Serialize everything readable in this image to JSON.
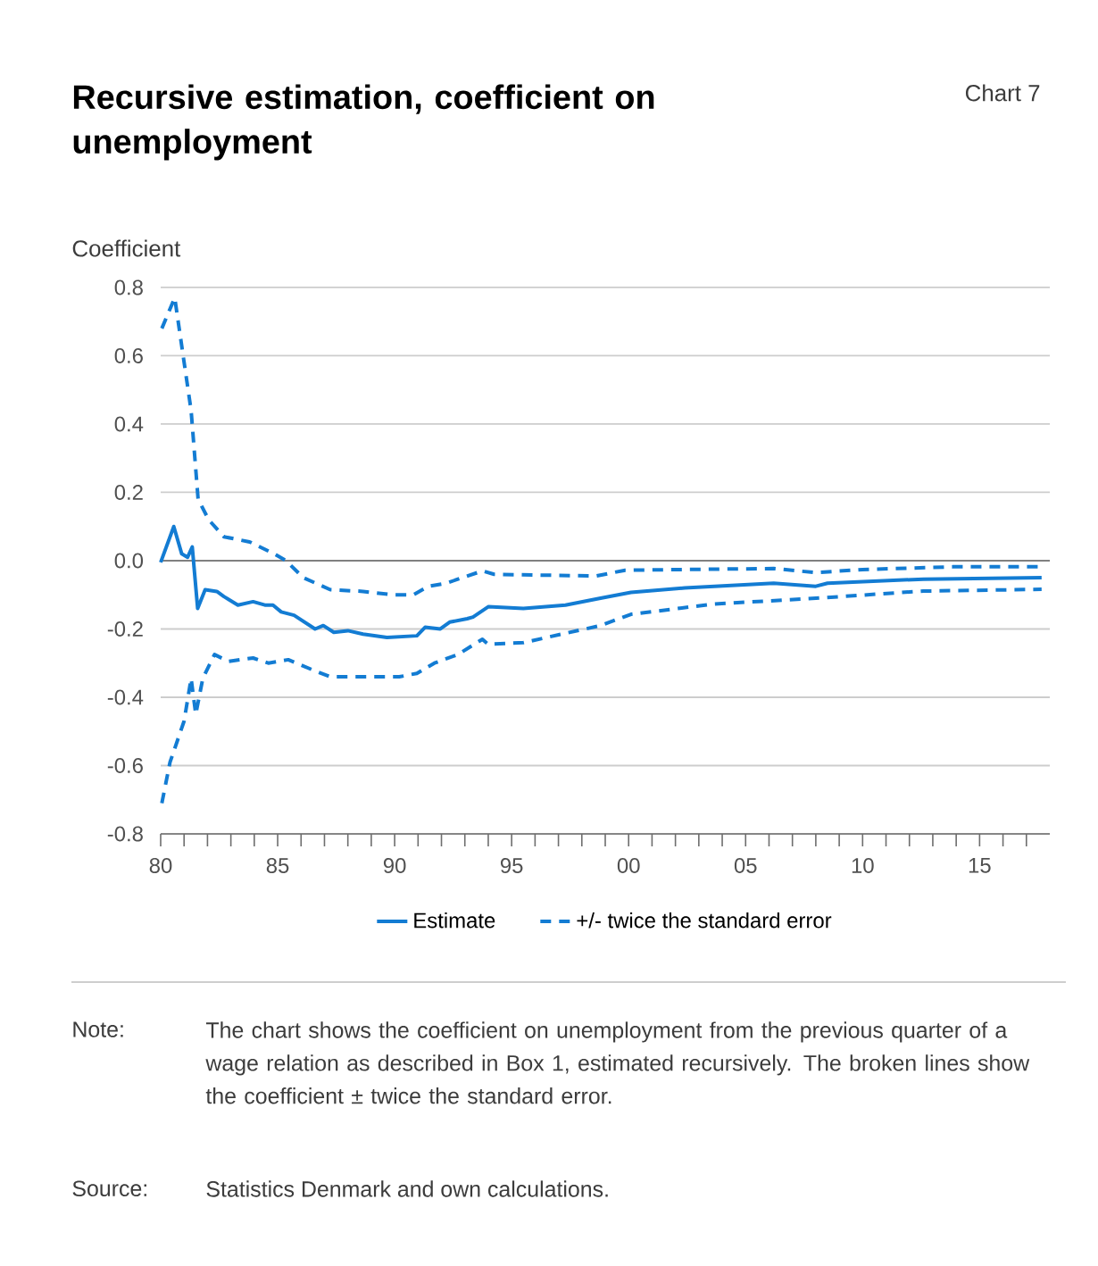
{
  "chart_data": {
    "type": "line",
    "title": "Recursive estimation, coefficient on unemployment",
    "ylabel": "Coefficient",
    "annotations": [
      "Chart 7",
      "Note:",
      "The chart shows the coefficient on unemployment from the previous quarter of a wage relation as described in Box 1, estimated recursively. The broken lines show the coefficient ± twice the standard error.",
      "Source:",
      "Statistics Denmark and own calculations."
    ],
    "xlim": [
      1980,
      2018
    ],
    "ylim": [
      -0.8,
      0.8
    ],
    "xticks": [
      {
        "value": 1980,
        "label": "80"
      },
      {
        "value": 1981,
        "label": null
      },
      {
        "value": 1982,
        "label": null
      },
      {
        "value": 1983,
        "label": null
      },
      {
        "value": 1984,
        "label": null
      },
      {
        "value": 1985,
        "label": "85"
      },
      {
        "value": 1986,
        "label": null
      },
      {
        "value": 1987,
        "label": null
      },
      {
        "value": 1988,
        "label": null
      },
      {
        "value": 1989,
        "label": null
      },
      {
        "value": 1990,
        "label": "90"
      },
      {
        "value": 1991,
        "label": null
      },
      {
        "value": 1992,
        "label": null
      },
      {
        "value": 1993,
        "label": null
      },
      {
        "value": 1994,
        "label": null
      },
      {
        "value": 1995,
        "label": "95"
      },
      {
        "value": 1996,
        "label": null
      },
      {
        "value": 1997,
        "label": null
      },
      {
        "value": 1998,
        "label": null
      },
      {
        "value": 1999,
        "label": null
      },
      {
        "value": 2000,
        "label": "00"
      },
      {
        "value": 2001,
        "label": null
      },
      {
        "value": 2002,
        "label": null
      },
      {
        "value": 2003,
        "label": null
      },
      {
        "value": 2004,
        "label": null
      },
      {
        "value": 2005,
        "label": "05"
      },
      {
        "value": 2006,
        "label": null
      },
      {
        "value": 2007,
        "label": null
      },
      {
        "value": 2008,
        "label": null
      },
      {
        "value": 2009,
        "label": null
      },
      {
        "value": 2010,
        "label": "10"
      },
      {
        "value": 2011,
        "label": null
      },
      {
        "value": 2012,
        "label": null
      },
      {
        "value": 2013,
        "label": null
      },
      {
        "value": 2014,
        "label": null
      },
      {
        "value": 2015,
        "label": "15"
      },
      {
        "value": 2016,
        "label": null
      },
      {
        "value": 2017,
        "label": null
      }
    ],
    "yticks": [
      {
        "value": -0.8,
        "label": "-0.8"
      },
      {
        "value": -0.6,
        "label": "-0.6"
      },
      {
        "value": -0.4,
        "label": "-0.4"
      },
      {
        "value": -0.2,
        "label": "-0.2"
      },
      {
        "value": 0,
        "label": "0.0"
      },
      {
        "value": 0.2,
        "label": "0.2"
      },
      {
        "value": 0.4,
        "label": "0.4"
      },
      {
        "value": 0.6,
        "label": "0.6"
      },
      {
        "value": 0.8,
        "label": "0.8"
      }
    ],
    "grid": "y",
    "legend": "bottom",
    "ref_lines": [
      {
        "axis": "y",
        "value": 0,
        "color": "#808080"
      }
    ],
    "series": [
      {
        "name": "Estimate",
        "color": "#137cd3",
        "line_style": "solid",
        "x": [
          1980.0,
          1980.56,
          1980.9,
          1981.15,
          1981.35,
          1981.58,
          1981.9,
          1982.4,
          1982.7,
          1983.3,
          1983.95,
          1984.45,
          1984.8,
          1985.15,
          1985.7,
          1986.6,
          1986.95,
          1987.4,
          1988.0,
          1988.65,
          1989.67,
          1990.95,
          1991.3,
          1991.95,
          1992.35,
          1993.1,
          1993.35,
          1994.0,
          1995.5,
          1997.3,
          1998.8,
          2000.1,
          2002.4,
          2006.2,
          2008.0,
          2008.5,
          2012.6,
          2017.65
        ],
        "values": [
          -0.005,
          0.1,
          0.02,
          0.01,
          0.04,
          -0.14,
          -0.085,
          -0.09,
          -0.105,
          -0.13,
          -0.12,
          -0.13,
          -0.13,
          -0.15,
          -0.16,
          -0.2,
          -0.19,
          -0.21,
          -0.205,
          -0.215,
          -0.225,
          -0.22,
          -0.195,
          -0.2,
          -0.18,
          -0.17,
          -0.165,
          -0.135,
          -0.14,
          -0.13,
          -0.11,
          -0.093,
          -0.08,
          -0.066,
          -0.075,
          -0.066,
          -0.054,
          -0.05
        ]
      },
      {
        "name": "+/- twice the standard error",
        "color": "#137cd3",
        "line_style": "dashed",
        "x": [
          1980.05,
          1980.6,
          1981.3,
          1981.6,
          1982.05,
          1982.7,
          1983.8,
          1984.85,
          1985.35,
          1986.1,
          1987.25,
          1988.65,
          1989.9,
          1990.8,
          1991.45,
          1992.2,
          1993.75,
          1994.25,
          1998.6,
          1999.85,
          2006.2,
          2008.0,
          2010.0,
          2013.85,
          2017.65
        ],
        "values": [
          0.68,
          0.77,
          0.44,
          0.18,
          0.12,
          0.07,
          0.055,
          0.02,
          0.0,
          -0.05,
          -0.085,
          -0.09,
          -0.1,
          -0.1,
          -0.075,
          -0.066,
          -0.03,
          -0.04,
          -0.045,
          -0.028,
          -0.023,
          -0.035,
          -0.026,
          -0.018,
          -0.018
        ]
      },
      {
        "color": "#137cd3",
        "line_style": "dashed",
        "x": [
          1980.05,
          1980.4,
          1981.0,
          1981.3,
          1981.5,
          1981.8,
          1982.3,
          1982.9,
          1983.95,
          1984.6,
          1985.45,
          1986.5,
          1987.25,
          1988.65,
          1990.2,
          1990.95,
          1991.7,
          1992.7,
          1993.75,
          1994.0,
          1995.5,
          1998.8,
          2000.1,
          2003.65,
          2008.0,
          2012.6,
          2017.65
        ],
        "values": [
          -0.71,
          -0.59,
          -0.47,
          -0.345,
          -0.45,
          -0.345,
          -0.275,
          -0.295,
          -0.285,
          -0.3,
          -0.29,
          -0.32,
          -0.34,
          -0.34,
          -0.34,
          -0.33,
          -0.3,
          -0.275,
          -0.23,
          -0.245,
          -0.24,
          -0.19,
          -0.157,
          -0.127,
          -0.11,
          -0.089,
          -0.084
        ]
      }
    ]
  }
}
